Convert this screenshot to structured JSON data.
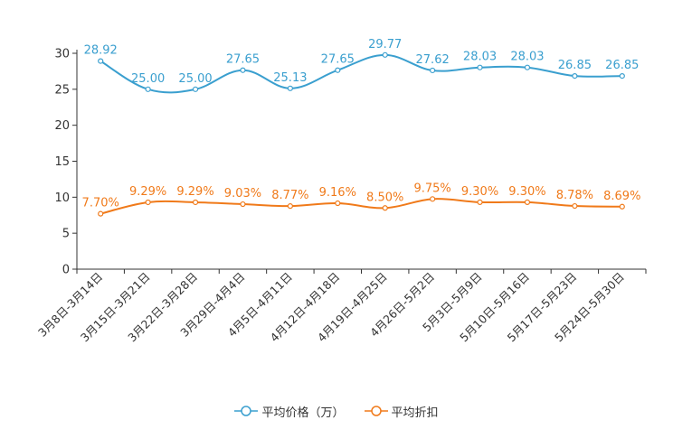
{
  "colors": {
    "price": "#3a9fcf",
    "discount": "#f07a1a",
    "axis": "#333333"
  },
  "legend": {
    "price": "平均价格（万）",
    "discount": "平均折扣"
  },
  "chart_data": {
    "type": "line",
    "categories": [
      "3月8日-3月14日",
      "3月15日-3月21日",
      "3月22日-3月28日",
      "3月29日-4月4日",
      "4月5日-4月11日",
      "4月12日-4月18日",
      "4月19日-4月25日",
      "4月26日-5月2日",
      "5月3日-5月9日",
      "5月10日-5月16日",
      "5月17日-5月23日",
      "5月24日-5月30日"
    ],
    "ylim": [
      0,
      30
    ],
    "yticks": [
      0,
      5,
      10,
      15,
      20,
      25,
      30
    ],
    "series": [
      {
        "name": "平均价格（万）",
        "values": [
          28.92,
          25.0,
          25.0,
          27.65,
          25.13,
          27.65,
          29.77,
          27.62,
          28.03,
          28.03,
          26.85,
          26.85
        ],
        "labels": [
          "28.92",
          "25.00",
          "25.00",
          "27.65",
          "25.13",
          "27.65",
          "29.77",
          "27.62",
          "28.03",
          "28.03",
          "26.85",
          "26.85"
        ]
      },
      {
        "name": "平均折扣",
        "values": [
          7.7,
          9.29,
          9.29,
          9.03,
          8.77,
          9.16,
          8.5,
          9.75,
          9.3,
          9.3,
          8.78,
          8.69
        ],
        "labels": [
          "7.70%",
          "9.29%",
          "9.29%",
          "9.03%",
          "8.77%",
          "9.16%",
          "8.50%",
          "9.75%",
          "9.30%",
          "9.30%",
          "8.78%",
          "8.69%"
        ]
      }
    ]
  }
}
